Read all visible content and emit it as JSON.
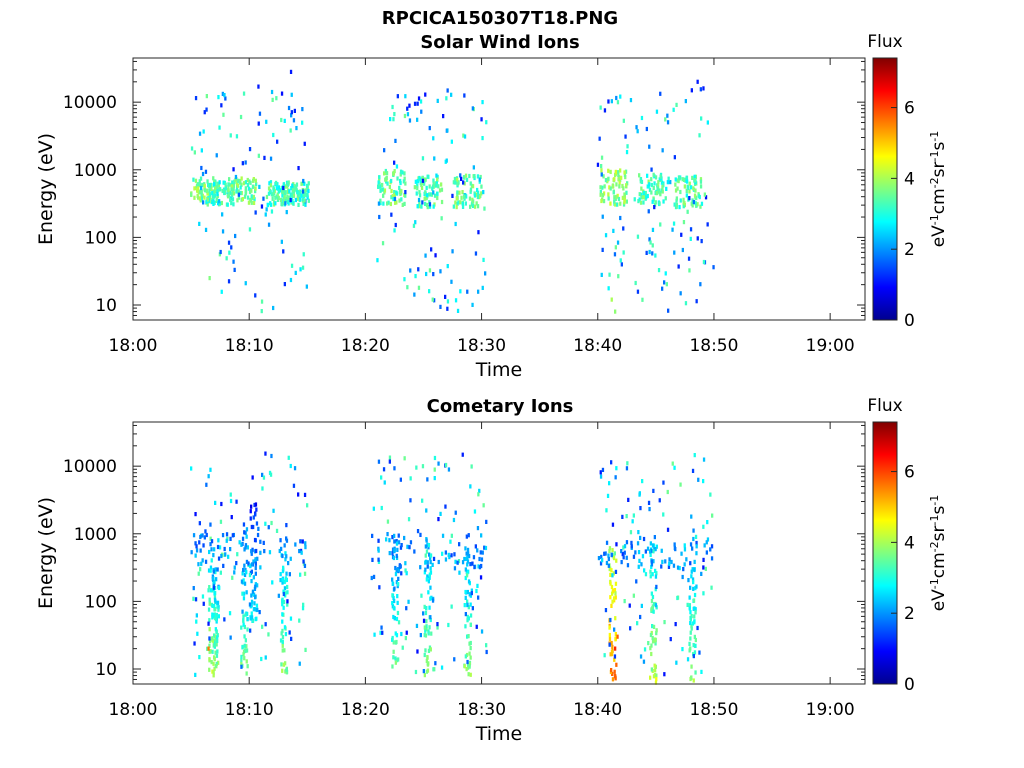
{
  "figure": {
    "title": "RPCICA150307T18.PNG"
  },
  "chart_data": [
    {
      "type": "heatmap",
      "title": "Solar Wind Ions",
      "xlabel": "Time",
      "ylabel": "Energy (eV)",
      "y_scale": "log",
      "xlim_minutes": [
        0,
        63
      ],
      "ylim": [
        6,
        45000
      ],
      "x_ticks": [
        "18:00",
        "18:10",
        "18:20",
        "18:30",
        "18:40",
        "18:50",
        "19:00"
      ],
      "y_ticks": [
        "10",
        "100",
        "1000",
        "10000"
      ],
      "colorbar": {
        "title": "Flux",
        "label": "eV-1cm-2sr-1s-1",
        "range": [
          0,
          7.4
        ],
        "ticks": [
          "0",
          "2",
          "4",
          "6"
        ]
      },
      "clusters": [
        {
          "t": 5.0,
          "e": 200,
          "emin": 350,
          "emax": 750,
          "v": 3.6
        },
        {
          "t": 6.3,
          "e": 0,
          "emin": 300,
          "emax": 700,
          "v": 3.2
        },
        {
          "t": 8.2,
          "e": 0,
          "emin": 320,
          "emax": 750,
          "v": 3.5
        },
        {
          "t": 11.6,
          "e": 0,
          "emin": 300,
          "emax": 700,
          "v": 3.3
        },
        {
          "t": 12.8,
          "e": 0,
          "emin": 300,
          "emax": 650,
          "v": 3.2
        },
        {
          "t": 21.1,
          "e": 0,
          "emin": 300,
          "emax": 1000,
          "v": 3.5
        },
        {
          "t": 24.2,
          "e": 0,
          "emin": 280,
          "emax": 800,
          "v": 3.3
        },
        {
          "t": 27.6,
          "e": 0,
          "emin": 280,
          "emax": 850,
          "v": 3.5
        },
        {
          "t": 40.2,
          "e": 0,
          "emin": 300,
          "emax": 1000,
          "v": 3.8
        },
        {
          "t": 43.5,
          "e": 0,
          "emin": 300,
          "emax": 850,
          "v": 3.3
        },
        {
          "t": 46.6,
          "e": 0,
          "emin": 280,
          "emax": 800,
          "v": 3.3
        }
      ],
      "scatter_ranges": [
        [
          5,
          15
        ],
        [
          21,
          30.5
        ],
        [
          40,
          50
        ]
      ],
      "extra_points": [
        {
          "t": 13.6,
          "e": 28000,
          "v": 1.1
        },
        {
          "t": 10.8,
          "e": 17000,
          "v": 1.1
        },
        {
          "t": 48.6,
          "e": 20000,
          "v": 1.1
        },
        {
          "t": 49.1,
          "e": 16000,
          "v": 1.1
        },
        {
          "t": 48.1,
          "e": 15000,
          "v": 1.1
        },
        {
          "t": 7.6,
          "e": 9000,
          "v": 1.2
        },
        {
          "t": 24.5,
          "e": 9500,
          "v": 1.2
        },
        {
          "t": 23.6,
          "e": 8000,
          "v": 1.2
        },
        {
          "t": 6.6,
          "e": 25,
          "v": 3.7
        },
        {
          "t": 41.2,
          "e": 12,
          "v": 4.0
        },
        {
          "t": 41.5,
          "e": 8,
          "v": 3.8
        },
        {
          "t": 25.8,
          "e": 12,
          "v": 3.5
        }
      ]
    },
    {
      "type": "heatmap",
      "title": "Cometary Ions",
      "xlabel": "Time",
      "ylabel": "Energy (eV)",
      "y_scale": "log",
      "xlim_minutes": [
        0,
        63
      ],
      "ylim": [
        6,
        45000
      ],
      "x_ticks": [
        "18:00",
        "18:10",
        "18:20",
        "18:30",
        "18:40",
        "18:50",
        "19:00"
      ],
      "y_ticks": [
        "10",
        "100",
        "1000",
        "10000"
      ],
      "colorbar": {
        "title": "Flux",
        "label": "eV-1cm-2sr-1s-1",
        "range": [
          0,
          7.4
        ],
        "ticks": [
          "0",
          "2",
          "4",
          "6"
        ]
      },
      "columns": [
        {
          "t": 6.8,
          "emin": 8,
          "emax": 600,
          "v": 4.2
        },
        {
          "t": 7.1,
          "emin": 10,
          "emax": 300,
          "v": 3.8
        },
        {
          "t": 9.6,
          "emin": 8,
          "emax": 1500,
          "v": 3.6
        },
        {
          "t": 10.4,
          "emin": 50,
          "emax": 2800,
          "v": 2.8
        },
        {
          "t": 13.0,
          "emin": 8,
          "emax": 1200,
          "v": 3.8
        },
        {
          "t": 22.6,
          "emin": 10,
          "emax": 1000,
          "v": 3.5
        },
        {
          "t": 25.4,
          "emin": 8,
          "emax": 900,
          "v": 3.9
        },
        {
          "t": 28.8,
          "emin": 8,
          "emax": 800,
          "v": 3.8
        },
        {
          "t": 41.3,
          "emin": 6,
          "emax": 700,
          "v": 5.6
        },
        {
          "t": 44.8,
          "emin": 6,
          "emax": 800,
          "v": 4.2
        },
        {
          "t": 48.2,
          "emin": 6,
          "emax": 850,
          "v": 3.8
        }
      ],
      "scatter_ranges": [
        [
          5,
          15
        ],
        [
          20.5,
          30.5
        ],
        [
          40,
          50
        ]
      ],
      "extra_points": [
        {
          "t": 48.2,
          "e": 8500,
          "v": 1.4
        },
        {
          "t": 30.4,
          "e": 1500,
          "v": 1.6
        },
        {
          "t": 6.5,
          "e": 20,
          "v": 5.6
        },
        {
          "t": 41.5,
          "e": 20,
          "v": 6.2
        },
        {
          "t": 41.7,
          "e": 30,
          "v": 5.8
        }
      ]
    }
  ]
}
